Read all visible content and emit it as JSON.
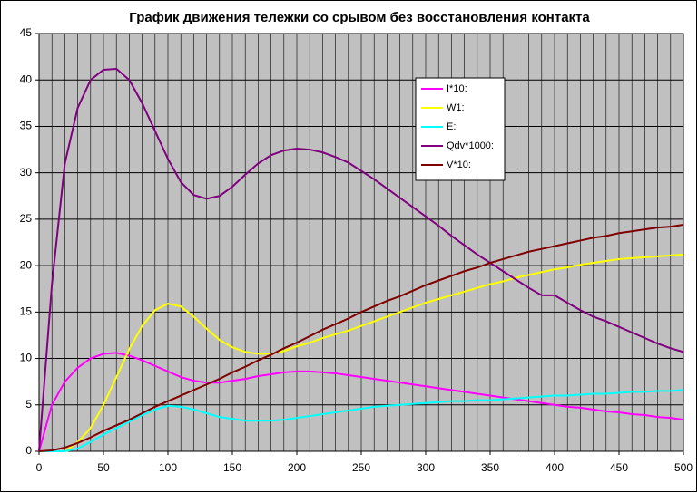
{
  "chart_data": {
    "type": "line",
    "title": "График движения тележки со срывом без восстановления контакта",
    "x": [
      0,
      10,
      20,
      30,
      40,
      50,
      60,
      70,
      80,
      90,
      100,
      110,
      120,
      130,
      140,
      150,
      160,
      170,
      180,
      190,
      200,
      210,
      220,
      230,
      240,
      250,
      260,
      270,
      280,
      290,
      300,
      310,
      320,
      330,
      340,
      350,
      360,
      370,
      380,
      390,
      400,
      410,
      420,
      430,
      440,
      450,
      460,
      470,
      480,
      490,
      500
    ],
    "xlim": [
      0,
      500
    ],
    "xticks": [
      0,
      50,
      100,
      150,
      200,
      250,
      300,
      350,
      400,
      450,
      500
    ],
    "ylim": [
      0,
      45
    ],
    "yticks": [
      0,
      5,
      10,
      15,
      20,
      25,
      30,
      35,
      40,
      45
    ],
    "grid": true,
    "legend": "upper right",
    "series": [
      {
        "name": "I*10:",
        "color": "#ff00ff",
        "values": [
          0,
          5,
          7.5,
          9,
          10,
          10.5,
          10.6,
          10.3,
          9.8,
          9.2,
          8.6,
          8.0,
          7.6,
          7.4,
          7.4,
          7.6,
          7.8,
          8.1,
          8.3,
          8.5,
          8.6,
          8.6,
          8.5,
          8.4,
          8.2,
          8.0,
          7.8,
          7.6,
          7.4,
          7.2,
          7.0,
          6.8,
          6.6,
          6.4,
          6.2,
          6.0,
          5.8,
          5.6,
          5.4,
          5.2,
          5.0,
          4.8,
          4.7,
          4.5,
          4.3,
          4.2,
          4.0,
          3.9,
          3.7,
          3.6,
          3.4
        ]
      },
      {
        "name": "W1:",
        "color": "#ffff00",
        "values": [
          0,
          0,
          0,
          1,
          2.5,
          5,
          8,
          11,
          13.5,
          15.2,
          15.9,
          15.6,
          14.5,
          13.2,
          12,
          11.2,
          10.7,
          10.5,
          10.5,
          10.8,
          11.3,
          11.7,
          12.2,
          12.6,
          13,
          13.5,
          14,
          14.5,
          15,
          15.5,
          16,
          16.4,
          16.8,
          17.2,
          17.6,
          18,
          18.3,
          18.7,
          19,
          19.3,
          19.6,
          19.8,
          20.1,
          20.3,
          20.5,
          20.7,
          20.8,
          20.9,
          21,
          21.1,
          21.2
        ]
      },
      {
        "name": "E:",
        "color": "#00ffff",
        "values": [
          0,
          0,
          0,
          0.3,
          1,
          1.8,
          2.5,
          3.2,
          3.9,
          4.5,
          4.9,
          4.8,
          4.5,
          4.1,
          3.7,
          3.5,
          3.3,
          3.3,
          3.3,
          3.4,
          3.6,
          3.8,
          4.0,
          4.2,
          4.4,
          4.6,
          4.8,
          4.9,
          5.0,
          5.1,
          5.2,
          5.3,
          5.4,
          5.4,
          5.5,
          5.5,
          5.6,
          5.7,
          5.8,
          5.9,
          6.0,
          6.0,
          6.1,
          6.2,
          6.2,
          6.3,
          6.4,
          6.4,
          6.5,
          6.5,
          6.6
        ]
      },
      {
        "name": "Qdv*1000:",
        "color": "#800080",
        "values": [
          0,
          18,
          31,
          37,
          40,
          41.1,
          41.2,
          40,
          37.5,
          34.5,
          31.5,
          29,
          27.6,
          27.2,
          27.5,
          28.5,
          29.8,
          31,
          31.9,
          32.4,
          32.6,
          32.5,
          32.2,
          31.7,
          31.1,
          30.2,
          29.3,
          28.3,
          27.3,
          26.3,
          25.3,
          24.3,
          23.2,
          22.2,
          21.2,
          20.3,
          19.4,
          18.5,
          17.6,
          16.8,
          16.8,
          16,
          15.2,
          14.5,
          14,
          13.4,
          12.8,
          12.2,
          11.6,
          11.1,
          10.7
        ]
      },
      {
        "name": "V*10:",
        "color": "#800000",
        "values": [
          0,
          0.1,
          0.4,
          0.9,
          1.5,
          2.2,
          2.8,
          3.4,
          4.1,
          4.8,
          5.4,
          6.0,
          6.6,
          7.2,
          7.8,
          8.5,
          9.1,
          9.8,
          10.4,
          11.1,
          11.7,
          12.4,
          13.1,
          13.7,
          14.3,
          15.0,
          15.6,
          16.2,
          16.7,
          17.3,
          17.9,
          18.4,
          18.9,
          19.4,
          19.8,
          20.3,
          20.7,
          21.1,
          21.5,
          21.8,
          22.1,
          22.4,
          22.7,
          23.0,
          23.2,
          23.5,
          23.7,
          23.9,
          24.1,
          24.2,
          24.4
        ]
      }
    ]
  }
}
